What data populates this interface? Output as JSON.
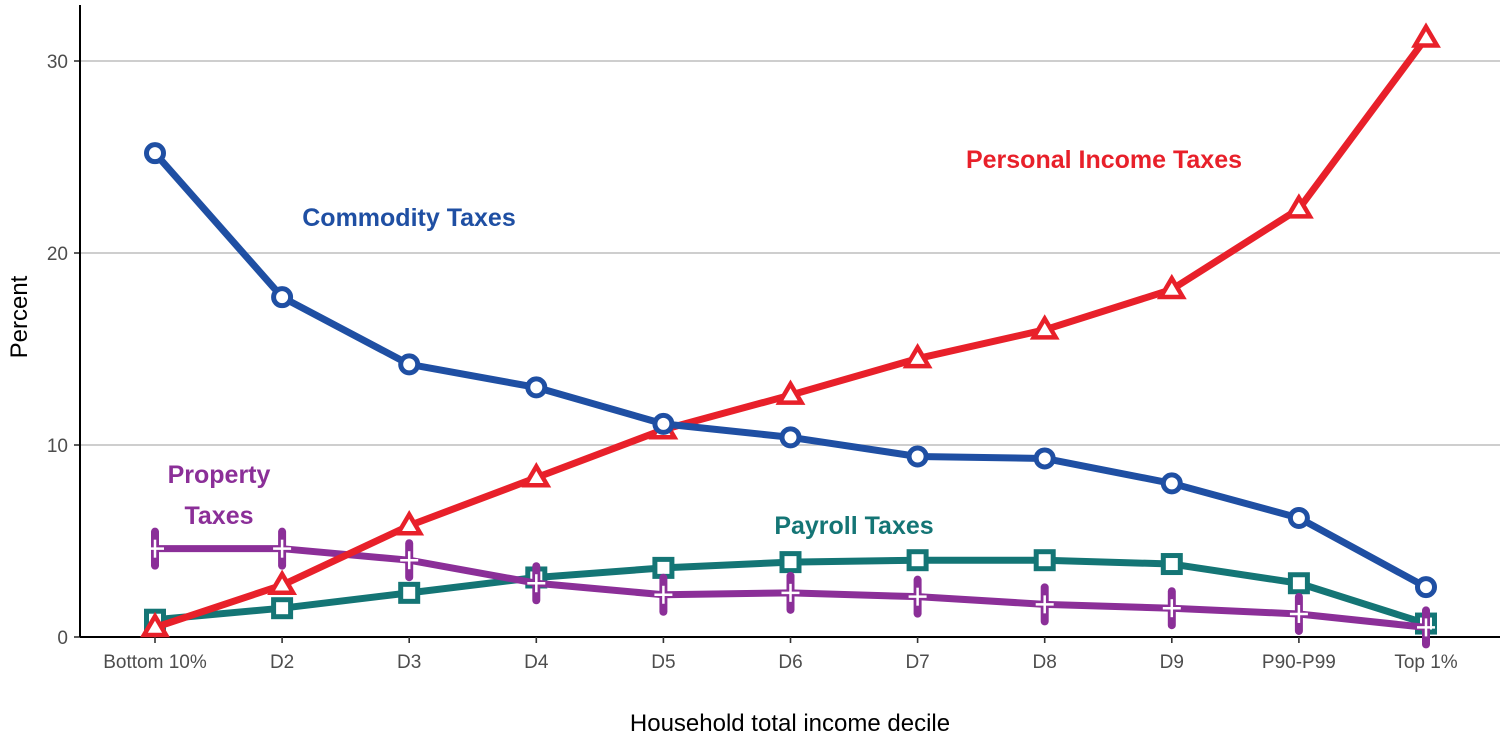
{
  "chart_data": {
    "type": "line",
    "title": "",
    "xlabel": "Household total income decile",
    "ylabel": "Percent",
    "ylim": [
      0,
      30
    ],
    "yticks": [
      0,
      10,
      20,
      30
    ],
    "grid": "horizontal major",
    "legend": "none (direct labels)",
    "categories": [
      "Bottom 10%",
      "D2",
      "D3",
      "D4",
      "D5",
      "D6",
      "D7",
      "D8",
      "D9",
      "P90-P99",
      "Top 1%"
    ],
    "series": [
      {
        "name": "Commodity Taxes",
        "label_lines": [
          "Commodity Taxes"
        ],
        "color": "#1f4fa3",
        "marker": "circle",
        "values": [
          25.2,
          17.7,
          14.2,
          13.0,
          11.1,
          10.4,
          9.4,
          9.3,
          8.0,
          6.2,
          2.6
        ]
      },
      {
        "name": "Personal Income Taxes",
        "label_lines": [
          "Personal Income Taxes"
        ],
        "color": "#e8202a",
        "marker": "triangle",
        "values": [
          0.5,
          2.7,
          5.8,
          8.3,
          10.8,
          12.6,
          14.5,
          16.0,
          18.1,
          22.3,
          31.2
        ]
      },
      {
        "name": "Payroll Taxes",
        "label_lines": [
          "Payroll Taxes"
        ],
        "color": "#147575",
        "marker": "square",
        "values": [
          0.9,
          1.5,
          2.3,
          3.1,
          3.6,
          3.9,
          4.0,
          4.0,
          3.8,
          2.8,
          0.7
        ]
      },
      {
        "name": "Property Taxes",
        "label_lines": [
          "Property",
          "Taxes"
        ],
        "color": "#8b2f98",
        "marker": "plus",
        "values": [
          4.6,
          4.6,
          4.0,
          2.8,
          2.2,
          2.3,
          2.1,
          1.7,
          1.5,
          1.2,
          0.5
        ]
      }
    ]
  }
}
